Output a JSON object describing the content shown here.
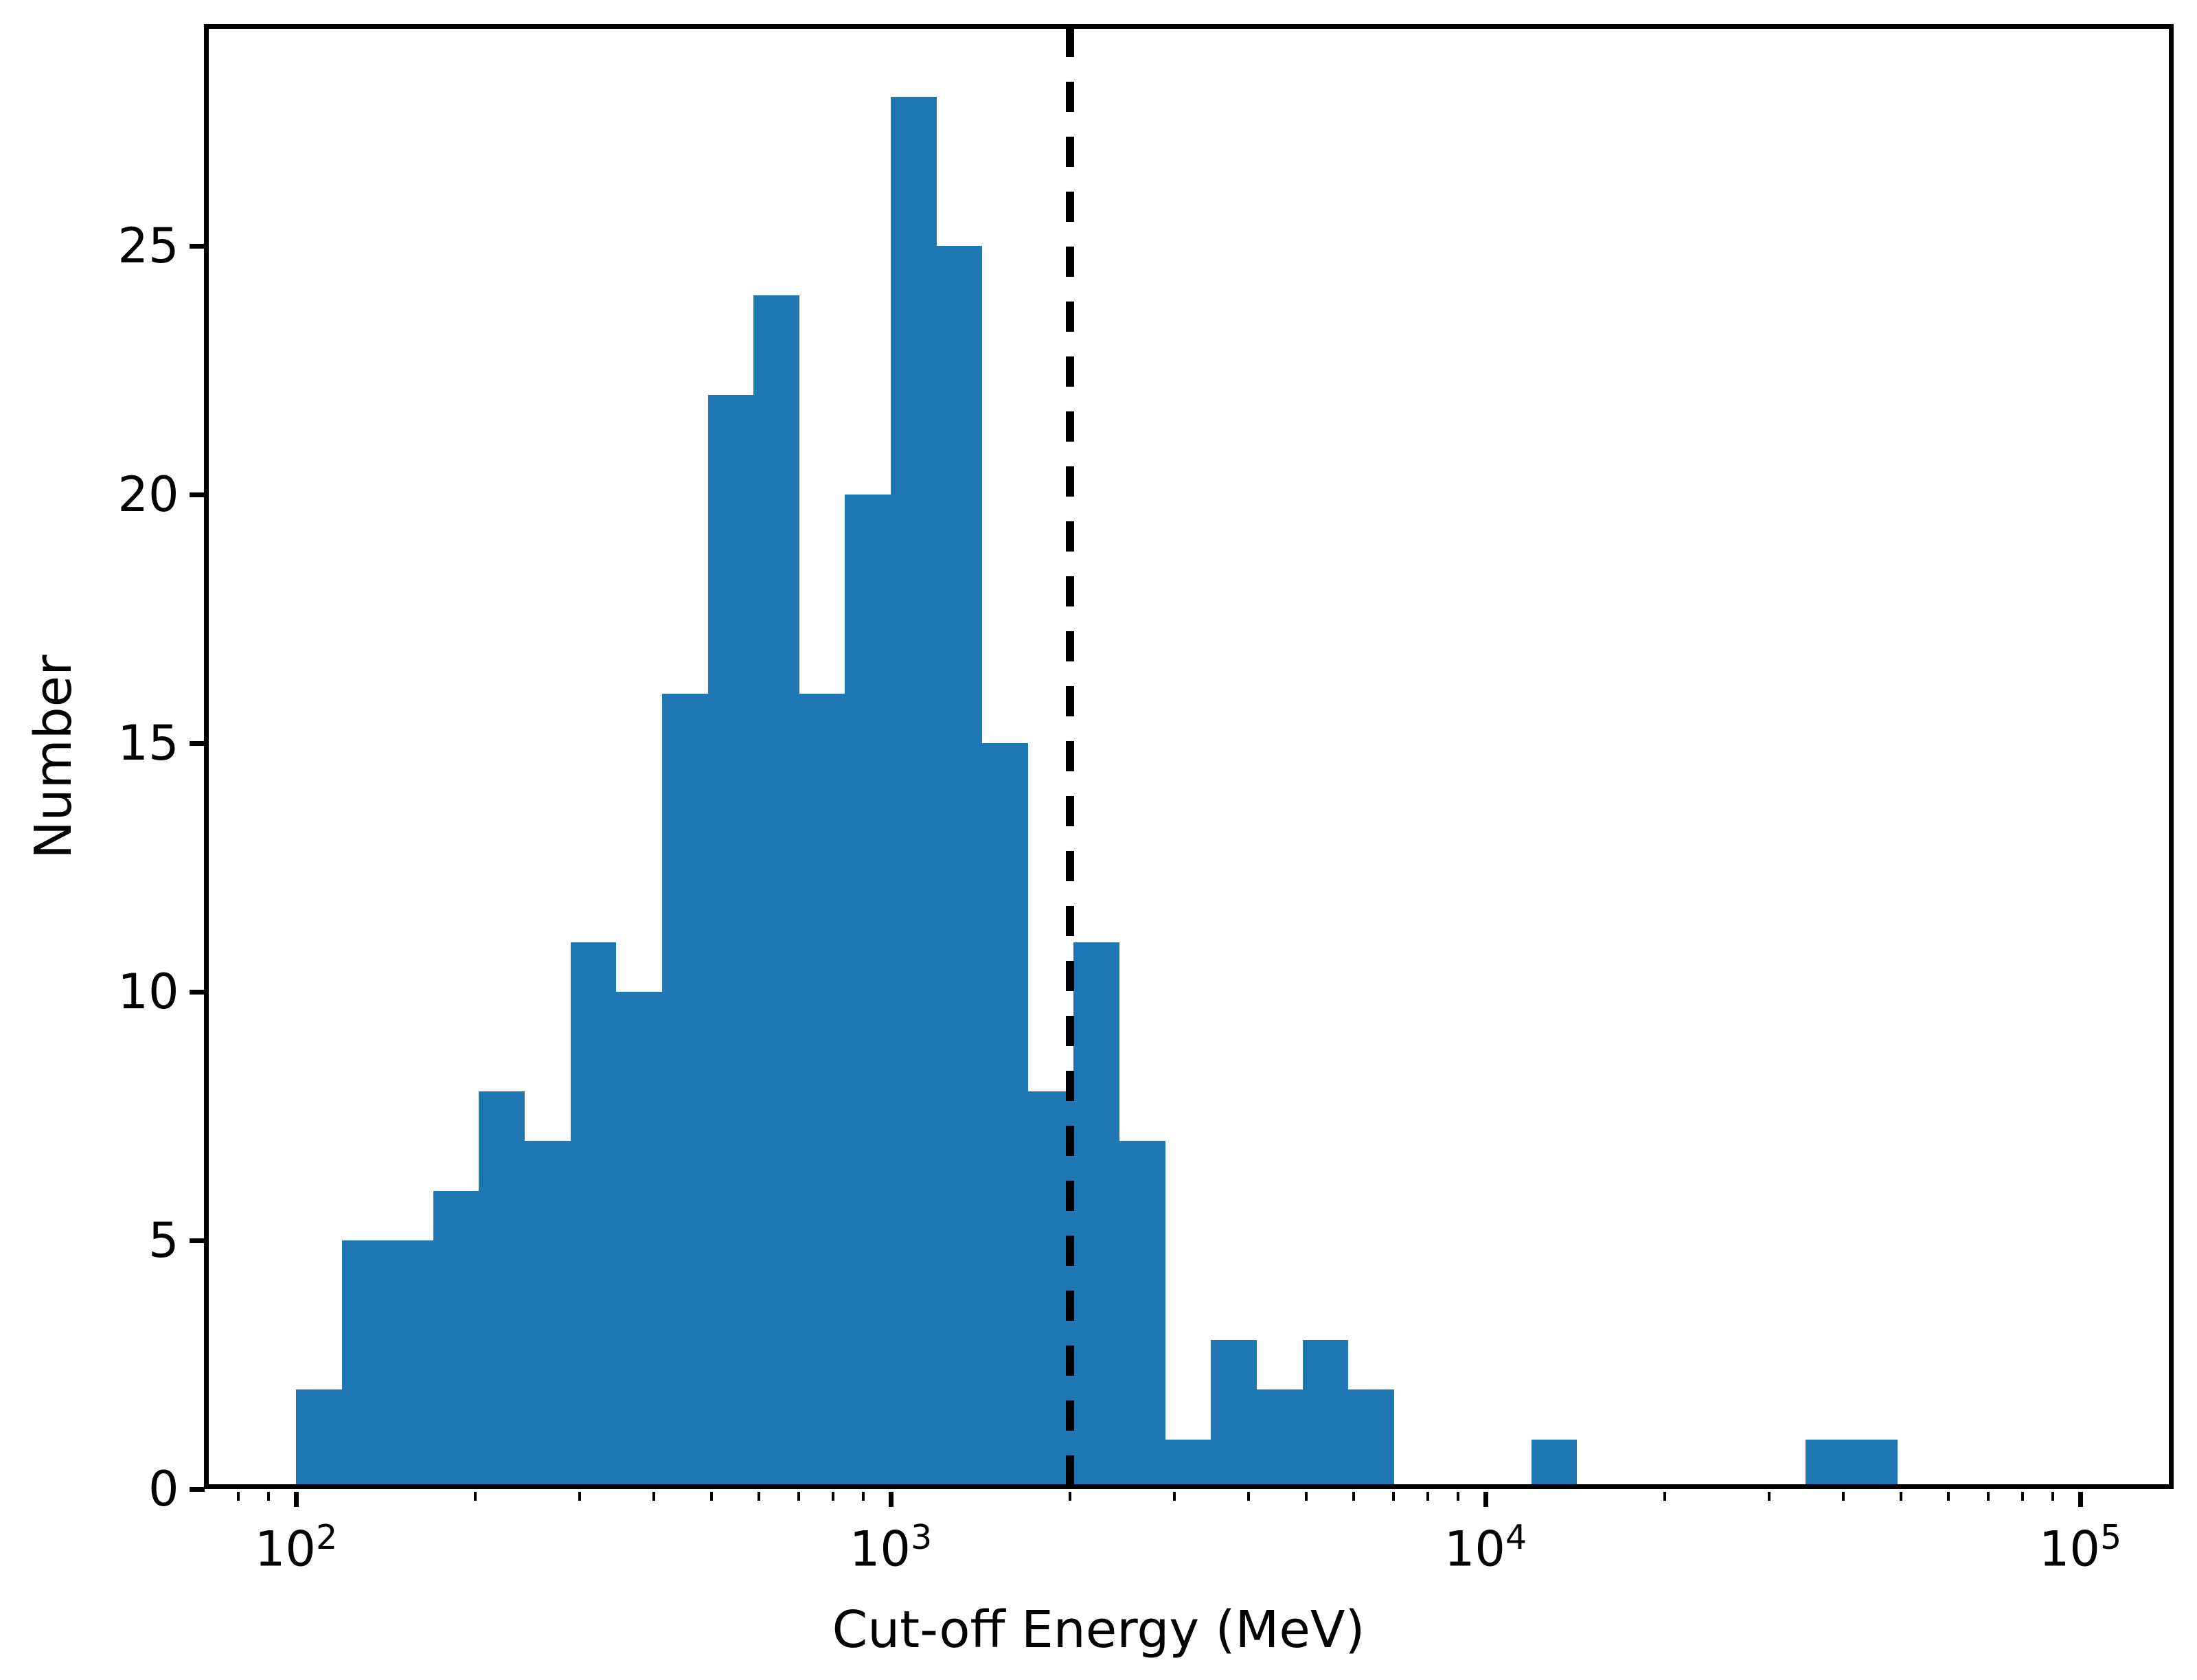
{
  "chart_data": {
    "type": "histogram",
    "title": "",
    "xlabel": "Cut-off Energy (MeV)",
    "ylabel": "Number",
    "x_scale": "log",
    "grid": false,
    "legend": null,
    "bar_color": "#1f77b4",
    "axis_color": "#000000",
    "background_color": "#ffffff",
    "bins_per_decade": 13,
    "bin_edges_mev": [
      100,
      119.4,
      142.5,
      170.1,
      203.1,
      242.4,
      289.4,
      345.5,
      412.5,
      492.4,
      587.8,
      701.7,
      837.7,
      1000,
      1193.8,
      1425.1,
      1701.3,
      2030.9,
      2424.5,
      2894.3,
      3455.1,
      4124.6,
      4923.9,
      5878.0,
      7017.0,
      8376.8,
      10000,
      11937.8,
      14251.0,
      17012.5,
      20309.2,
      24244.6,
      28942.7,
      34551.1,
      41246.3,
      49238.8,
      58779.8,
      70169.6,
      83767.8,
      100000
    ],
    "counts": [
      2,
      5,
      5,
      6,
      8,
      7,
      11,
      10,
      16,
      22,
      24,
      16,
      20,
      28,
      25,
      15,
      8,
      11,
      7,
      1,
      3,
      2,
      3,
      2,
      0,
      0,
      0,
      1,
      0,
      0,
      0,
      0,
      0,
      1,
      1,
      0,
      0,
      0,
      0
    ],
    "vline": {
      "x_mev": 2000,
      "style": "dashed",
      "color": "#000000"
    },
    "xticks": [
      {
        "value": 100,
        "base": "10",
        "exp": "2"
      },
      {
        "value": 1000,
        "base": "10",
        "exp": "3"
      },
      {
        "value": 10000,
        "base": "10",
        "exp": "4"
      },
      {
        "value": 100000,
        "base": "10",
        "exp": "5"
      }
    ],
    "yticks": [
      0,
      5,
      10,
      15,
      20,
      25
    ],
    "xlim_mev": [
      71,
      143000
    ],
    "ylim": [
      0,
      29.4
    ]
  }
}
